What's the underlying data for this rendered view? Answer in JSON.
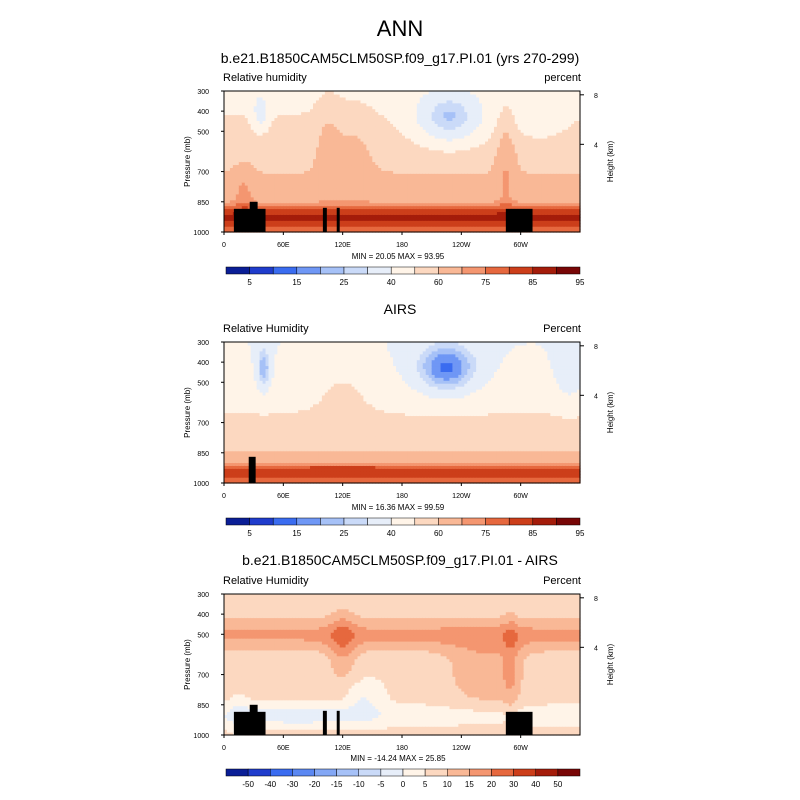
{
  "page": {
    "main_title": "ANN"
  },
  "chart_data": [
    {
      "type": "heatmap",
      "title": "b.e21.B1850CAM5CLM50SP.f09_g17.PI.01 (yrs 270-299)",
      "left_label": "Relative humidity",
      "right_label": "percent",
      "ylabel": "Pressure (mb)",
      "y2label": "Height (km)",
      "yticks": [
        1000,
        850,
        700,
        500,
        400,
        300
      ],
      "y2ticks": [
        4,
        8
      ],
      "xticks": [
        "0",
        "60E",
        "120E",
        "180",
        "120W",
        "60W"
      ],
      "xtick_lons": [
        0,
        60,
        120,
        180,
        240,
        300
      ],
      "stats": "MIN =  20.05  MAX =  93.95",
      "colorbar_labels": [
        "5",
        "15",
        "25",
        "40",
        "60",
        "75",
        "85",
        "95"
      ],
      "colorbar_colors": [
        "#0a1e96",
        "#1f3ccc",
        "#3a6cf0",
        "#6f97f5",
        "#a6c1f7",
        "#cadaf8",
        "#e7eef9",
        "#fff4e8",
        "#fcd8c0",
        "#f9b896",
        "#f49670",
        "#e6683e",
        "#cc3e1a",
        "#a41c0a",
        "#780606"
      ],
      "xlim": [
        0,
        360
      ],
      "ylim": [
        1000,
        300
      ],
      "field": "model"
    },
    {
      "type": "heatmap",
      "title": "AIRS",
      "left_label": "Relative Humidity",
      "right_label": "Percent",
      "ylabel": "Pressure (mb)",
      "y2label": "Height (km)",
      "yticks": [
        1000,
        850,
        700,
        500,
        400,
        300
      ],
      "y2ticks": [
        4,
        8
      ],
      "xticks": [
        "0",
        "60E",
        "120E",
        "180",
        "120W",
        "60W"
      ],
      "xtick_lons": [
        0,
        60,
        120,
        180,
        240,
        300
      ],
      "stats": "MIN =  16.36  MAX =  99.59",
      "colorbar_labels": [
        "5",
        "15",
        "25",
        "40",
        "60",
        "75",
        "85",
        "95"
      ],
      "colorbar_colors": [
        "#0a1e96",
        "#1f3ccc",
        "#3a6cf0",
        "#6f97f5",
        "#a6c1f7",
        "#cadaf8",
        "#e7eef9",
        "#fff4e8",
        "#fcd8c0",
        "#f9b896",
        "#f49670",
        "#e6683e",
        "#cc3e1a",
        "#a41c0a",
        "#780606"
      ],
      "xlim": [
        0,
        360
      ],
      "ylim": [
        1000,
        300
      ],
      "field": "obs"
    },
    {
      "type": "heatmap",
      "title": "b.e21.B1850CAM5CLM50SP.f09_g17.PI.01 - AIRS",
      "left_label": "Relative Humidity",
      "right_label": "Percent",
      "ylabel": "Pressure (mb)",
      "y2label": "Height (km)",
      "yticks": [
        1000,
        850,
        700,
        500,
        400,
        300
      ],
      "y2ticks": [
        4,
        8
      ],
      "xticks": [
        "0",
        "60E",
        "120E",
        "180",
        "120W",
        "60W"
      ],
      "xtick_lons": [
        0,
        60,
        120,
        180,
        240,
        300
      ],
      "stats": "MIN = -14.24  MAX =  25.85",
      "colorbar_labels": [
        "-50",
        "-40",
        "-30",
        "-20",
        "-15",
        "-10",
        "-5",
        "0",
        "5",
        "10",
        "15",
        "20",
        "30",
        "40",
        "50"
      ],
      "colorbar_colors": [
        "#0a1e96",
        "#1f3ccc",
        "#3a6cf0",
        "#5b88f2",
        "#83a7f5",
        "#a6c1f7",
        "#cadaf8",
        "#e7eef9",
        "#fff4e8",
        "#fcd8c0",
        "#f9b896",
        "#f49670",
        "#e6683e",
        "#cc3e1a",
        "#a41c0a",
        "#780606"
      ],
      "xlim": [
        0,
        360
      ],
      "ylim": [
        1000,
        300
      ],
      "field": "diff"
    }
  ]
}
